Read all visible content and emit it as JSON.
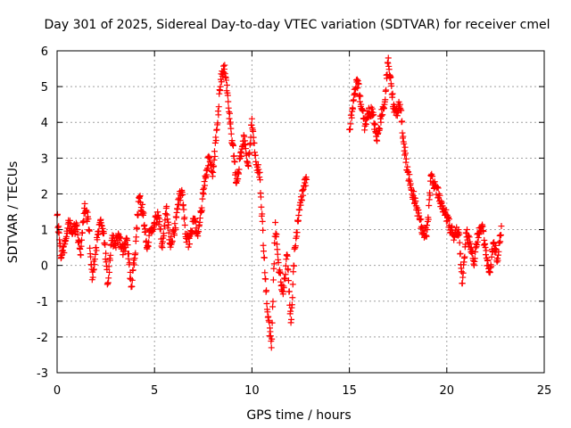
{
  "chart_data": {
    "type": "scatter",
    "title": "Day 301 of 2025, Sidereal Day-to-day VTEC variation (SDTVAR) for receiver cmel",
    "xlabel": "GPS time / hours",
    "ylabel": "SDTVAR / TECUs",
    "xlim": [
      0,
      25
    ],
    "ylim": [
      -3,
      6
    ],
    "xticks": [
      "0",
      "5",
      "10",
      "15",
      "20",
      "25"
    ],
    "yticks": [
      "-3",
      "-2",
      "-1",
      "0",
      "1",
      "2",
      "3",
      "4",
      "5",
      "6"
    ],
    "grid": true,
    "marker": "plus",
    "color": "#ff0000",
    "series": [
      {
        "name": "sdtvar",
        "x": [
          0.0,
          0.2,
          0.4,
          0.6,
          0.8,
          1.0,
          1.2,
          1.4,
          1.6,
          1.8,
          2.0,
          2.2,
          2.4,
          2.6,
          2.8,
          3.0,
          3.2,
          3.4,
          3.6,
          3.8,
          4.0,
          4.2,
          4.4,
          4.6,
          4.8,
          5.0,
          5.2,
          5.4,
          5.6,
          5.8,
          6.0,
          6.2,
          6.4,
          6.6,
          6.8,
          7.0,
          7.2,
          7.4,
          7.6,
          7.8,
          8.0,
          8.2,
          8.4,
          8.6,
          8.8,
          9.0,
          9.2,
          9.4,
          9.6,
          9.8,
          10.0,
          10.2,
          10.4,
          10.6,
          10.8,
          11.0,
          11.2,
          11.4,
          11.6,
          11.8,
          12.0,
          12.2,
          12.4,
          12.6,
          12.8,
          15.0,
          15.2,
          15.4,
          15.6,
          15.8,
          16.0,
          16.2,
          16.4,
          16.6,
          16.8,
          17.0,
          17.2,
          17.4,
          17.6,
          17.8,
          18.0,
          18.2,
          18.4,
          18.6,
          18.8,
          19.0,
          19.2,
          19.4,
          19.6,
          19.8,
          20.0,
          20.2,
          20.4,
          20.6,
          20.8,
          21.0,
          21.2,
          21.4,
          21.6,
          21.8,
          22.0,
          22.2,
          22.4,
          22.6,
          22.8
        ],
        "y": [
          1.4,
          0.2,
          0.6,
          1.2,
          0.9,
          1.1,
          0.3,
          1.6,
          1.3,
          -0.4,
          0.5,
          1.2,
          0.9,
          -0.5,
          0.7,
          0.6,
          0.8,
          0.4,
          0.7,
          -0.6,
          0.3,
          1.9,
          1.5,
          0.5,
          1.0,
          1.2,
          1.4,
          0.5,
          1.6,
          0.6,
          0.9,
          1.7,
          2.1,
          0.8,
          0.6,
          1.3,
          0.9,
          1.5,
          2.5,
          3.0,
          2.6,
          3.8,
          5.2,
          5.6,
          4.4,
          3.4,
          2.3,
          3.0,
          3.6,
          2.8,
          4.1,
          2.9,
          2.6,
          0.4,
          -1.3,
          -2.3,
          1.2,
          -0.2,
          -0.8,
          0.3,
          -1.6,
          0.5,
          1.4,
          2.1,
          2.4,
          3.8,
          4.6,
          5.2,
          4.5,
          3.9,
          4.4,
          4.2,
          3.5,
          4.1,
          4.5,
          5.8,
          4.7,
          4.2,
          4.5,
          3.4,
          2.6,
          2.1,
          1.8,
          1.3,
          0.9,
          1.0,
          2.5,
          2.2,
          2.0,
          1.5,
          1.4,
          1.0,
          0.8,
          1.0,
          -0.5,
          0.9,
          0.6,
          0.0,
          0.9,
          1.1,
          0.3,
          -0.2,
          0.6,
          0.2,
          1.1
        ]
      }
    ]
  }
}
